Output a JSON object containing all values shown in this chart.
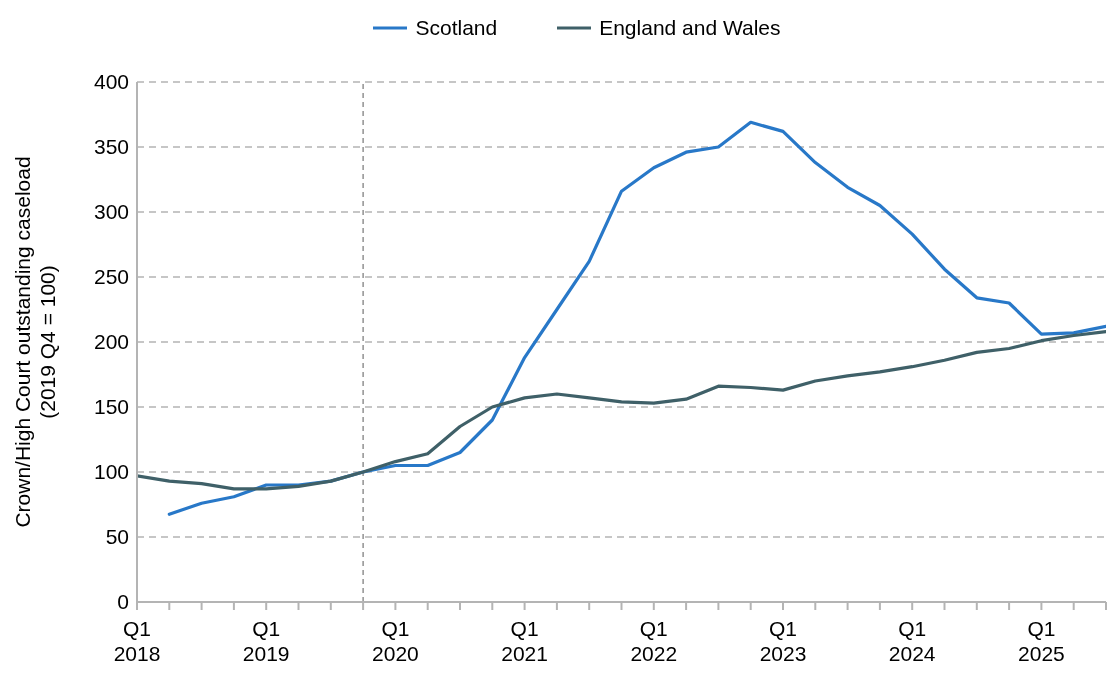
{
  "chart_data": {
    "type": "line",
    "ylabel": "Crown/High Court outstanding caseload\n(2019 Q4 = 100)",
    "x": [
      "2018-01",
      "2018-04",
      "2018-07",
      "2018-10",
      "2019-01",
      "2019-04",
      "2019-07",
      "2019-10",
      "2020-01",
      "2020-04",
      "2020-07",
      "2020-10",
      "2021-01",
      "2021-04",
      "2021-07",
      "2021-10",
      "2022-01",
      "2022-04",
      "2022-07",
      "2022-10",
      "2023-01",
      "2023-04",
      "2023-07",
      "2023-10",
      "2024-01",
      "2024-04",
      "2024-07",
      "2024-10",
      "2025-01",
      "2025-04",
      "2025-07"
    ],
    "series": [
      {
        "name": "Scotland",
        "color": "#2878c8",
        "values": [
          null,
          67.5,
          76,
          81,
          90,
          90,
          93,
          100,
          105,
          105,
          115,
          140,
          188,
          225,
          262,
          316,
          334,
          346,
          350,
          369,
          362,
          338,
          319,
          305,
          283,
          256,
          234,
          230,
          206,
          207,
          212
        ]
      },
      {
        "name": "England and Wales",
        "color": "#3f6068",
        "values": [
          97,
          93,
          91,
          87,
          87,
          89,
          93,
          100,
          108,
          114,
          135,
          150,
          157,
          160,
          157,
          154,
          153,
          156,
          166,
          165,
          163,
          170,
          174,
          177,
          181,
          186,
          192,
          195,
          201,
          205,
          208
        ]
      }
    ],
    "xlim": [
      "2018-01",
      "2025-07"
    ],
    "xticks": [
      {
        "value": "2018-01",
        "label": "Q1\n2018"
      },
      {
        "value": "2018-04",
        "label": null
      },
      {
        "value": "2018-07",
        "label": null
      },
      {
        "value": "2018-10",
        "label": null
      },
      {
        "value": "2019-01",
        "label": "Q1\n2019"
      },
      {
        "value": "2019-04",
        "label": null
      },
      {
        "value": "2019-07",
        "label": null
      },
      {
        "value": "2019-10",
        "label": null
      },
      {
        "value": "2020-01",
        "label": "Q1\n2020"
      },
      {
        "value": "2020-04",
        "label": null
      },
      {
        "value": "2020-07",
        "label": null
      },
      {
        "value": "2020-10",
        "label": null
      },
      {
        "value": "2021-01",
        "label": "Q1\n2021"
      },
      {
        "value": "2021-04",
        "label": null
      },
      {
        "value": "2021-07",
        "label": null
      },
      {
        "value": "2021-10",
        "label": null
      },
      {
        "value": "2022-01",
        "label": "Q1\n2022"
      },
      {
        "value": "2022-04",
        "label": null
      },
      {
        "value": "2022-07",
        "label": null
      },
      {
        "value": "2022-10",
        "label": null
      },
      {
        "value": "2023-01",
        "label": "Q1\n2023"
      },
      {
        "value": "2023-04",
        "label": null
      },
      {
        "value": "2023-07",
        "label": null
      },
      {
        "value": "2023-10",
        "label": null
      },
      {
        "value": "2024-01",
        "label": "Q1\n2024"
      },
      {
        "value": "2024-04",
        "label": null
      },
      {
        "value": "2024-07",
        "label": null
      },
      {
        "value": "2024-10",
        "label": null
      },
      {
        "value": "2025-01",
        "label": "Q1\n2025"
      },
      {
        "value": "2025-04",
        "label": null
      },
      {
        "value": "2025-07",
        "label": null
      }
    ],
    "ylim": [
      0,
      400
    ],
    "yticks": [
      0,
      50,
      100,
      150,
      200,
      250,
      300,
      350,
      400
    ],
    "grid": "y",
    "legend": "top",
    "ref_lines": [
      {
        "axis": "x",
        "value": "2019-10",
        "color": "#808080",
        "line_style": "dashed"
      }
    ]
  }
}
